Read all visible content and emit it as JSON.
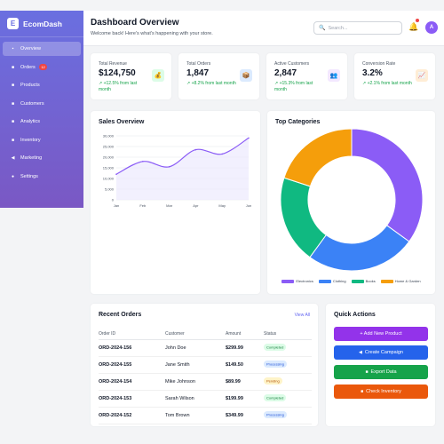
{
  "app": {
    "logo_letter": "E",
    "name": "EcomDash"
  },
  "sidebar": {
    "items": [
      {
        "label": "Overview",
        "icon": "grid-icon",
        "glyph": "▪",
        "active": true
      },
      {
        "label": "Orders",
        "icon": "cart-icon",
        "glyph": "■",
        "badge": "12"
      },
      {
        "label": "Products",
        "icon": "box-icon",
        "glyph": "■"
      },
      {
        "label": "Customers",
        "icon": "users-icon",
        "glyph": "■"
      },
      {
        "label": "Analytics",
        "icon": "chart-icon",
        "glyph": "■"
      },
      {
        "label": "Inventory",
        "icon": "warehouse-icon",
        "glyph": "■"
      },
      {
        "label": "Marketing",
        "icon": "megaphone-icon",
        "glyph": "◀"
      },
      {
        "label": "Settings",
        "icon": "gear-icon",
        "glyph": "●"
      }
    ]
  },
  "header": {
    "title": "Dashboard Overview",
    "subtitle": "Welcome back! Here's what's happening with your store.",
    "search_placeholder": "Search...",
    "avatar_letter": "A"
  },
  "stats": [
    {
      "label": "Total Revenue",
      "value": "$124,750",
      "trend": "↗ +12.5% from last month",
      "icon": "money-bag-icon",
      "glyph": "💰",
      "icon_bg": "#dcfce7"
    },
    {
      "label": "Total Orders",
      "value": "1,847",
      "trend": "↗ +8.2% from last month",
      "icon": "package-icon",
      "glyph": "📦",
      "icon_bg": "#dbeafe"
    },
    {
      "label": "Active Customers",
      "value": "2,847",
      "trend": "↗ +15.3% from last month",
      "icon": "customers-icon",
      "glyph": "👥",
      "icon_bg": "#f3e8ff"
    },
    {
      "label": "Conversion Rate",
      "value": "3.2%",
      "trend": "↗ +2.1% from last month",
      "icon": "trend-chart-icon",
      "glyph": "📈",
      "icon_bg": "#ffedd5"
    }
  ],
  "sales": {
    "title": "Sales Overview",
    "chart_data": {
      "type": "line",
      "categories": [
        "Jan",
        "Feb",
        "Mar",
        "Apr",
        "May",
        "Jun"
      ],
      "series": [
        {
          "values": [
            12000,
            18000,
            15500,
            23500,
            21500,
            29000
          ]
        }
      ],
      "y_ticks": [
        "0",
        "5,000",
        "10,000",
        "15,000",
        "20,000",
        "25,000",
        "30,000"
      ],
      "ylim": [
        0,
        30000
      ],
      "color": "#8b5cf6",
      "fill": "#ede9fe"
    }
  },
  "categories": {
    "title": "Top Categories",
    "chart_data": {
      "type": "pie",
      "labels": [
        "Electronics",
        "Clothing",
        "Books",
        "Home & Garden"
      ],
      "values": [
        35,
        25,
        20,
        20
      ],
      "colors": [
        "#8b5cf6",
        "#3b82f6",
        "#10b981",
        "#f59e0b"
      ]
    }
  },
  "orders": {
    "title": "Recent Orders",
    "view_all": "View All",
    "columns": [
      "Order ID",
      "Customer",
      "Amount",
      "Status"
    ],
    "rows": [
      {
        "id": "ORD-2024-156",
        "customer": "John Doe",
        "amount": "$299.99",
        "status": "Completed",
        "status_class": "completed"
      },
      {
        "id": "ORD-2024-155",
        "customer": "Jane Smith",
        "amount": "$149.50",
        "status": "Processing",
        "status_class": "processing"
      },
      {
        "id": "ORD-2024-154",
        "customer": "Mike Johnson",
        "amount": "$89.99",
        "status": "Pending",
        "status_class": "pending"
      },
      {
        "id": "ORD-2024-153",
        "customer": "Sarah Wilson",
        "amount": "$199.99",
        "status": "Completed",
        "status_class": "completed"
      },
      {
        "id": "ORD-2024-152",
        "customer": "Tom Brown",
        "amount": "$349.99",
        "status": "Processing",
        "status_class": "processing"
      }
    ]
  },
  "quick_actions": {
    "title": "Quick Actions",
    "buttons": [
      {
        "label": "+ Add New Product",
        "icon": "",
        "color": "#9333ea"
      },
      {
        "label": "Create Campaign",
        "icon": "megaphone-icon",
        "glyph": "◀",
        "color": "#2563eb"
      },
      {
        "label": "Export Data",
        "icon": "export-icon",
        "glyph": "■",
        "color": "#16a34a"
      },
      {
        "label": "Check Inventory",
        "icon": "clipboard-icon",
        "glyph": "■",
        "color": "#ea580c"
      }
    ]
  }
}
